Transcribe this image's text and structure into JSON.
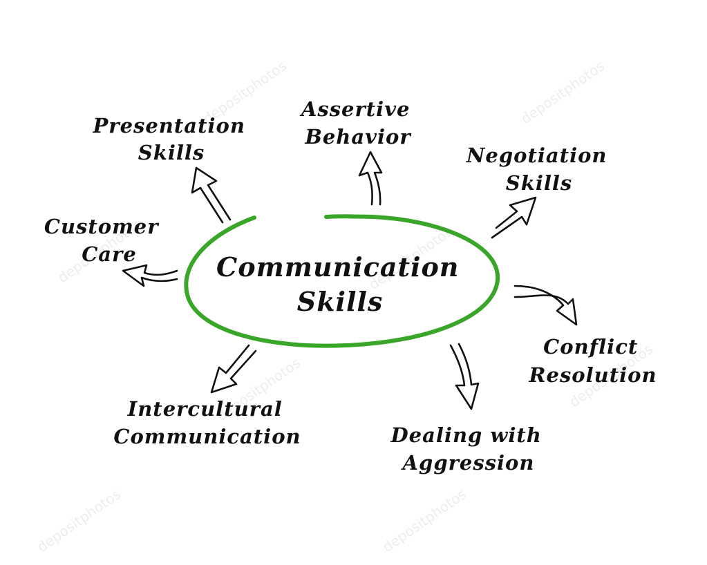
{
  "diagram": {
    "center": {
      "lines": [
        "Communication",
        "Skills"
      ]
    },
    "nodes": [
      {
        "id": "presentation",
        "lines": [
          "Presentation",
          "Skills"
        ]
      },
      {
        "id": "assertive",
        "lines": [
          "Assertive",
          "Behavior"
        ]
      },
      {
        "id": "negotiation",
        "lines": [
          "Negotiation",
          "Skills"
        ]
      },
      {
        "id": "customer",
        "lines": [
          "Customer",
          "Care"
        ]
      },
      {
        "id": "conflict",
        "lines": [
          "Conflict",
          "Resolution"
        ]
      },
      {
        "id": "intercultural",
        "lines": [
          "Intercultural",
          "Communication"
        ]
      },
      {
        "id": "aggression",
        "lines": [
          "Dealing with",
          "Aggression"
        ]
      }
    ],
    "edges": [
      {
        "from": "center",
        "to": "presentation"
      },
      {
        "from": "center",
        "to": "assertive"
      },
      {
        "from": "center",
        "to": "negotiation"
      },
      {
        "from": "center",
        "to": "customer"
      },
      {
        "from": "center",
        "to": "conflict"
      },
      {
        "from": "center",
        "to": "intercultural"
      },
      {
        "from": "center",
        "to": "aggression"
      }
    ]
  },
  "colors": {
    "oval": "#3aa629",
    "text": "#111111",
    "arrow": "#111111",
    "background": "#ffffff"
  },
  "watermark": {
    "text": "depositphotos"
  }
}
